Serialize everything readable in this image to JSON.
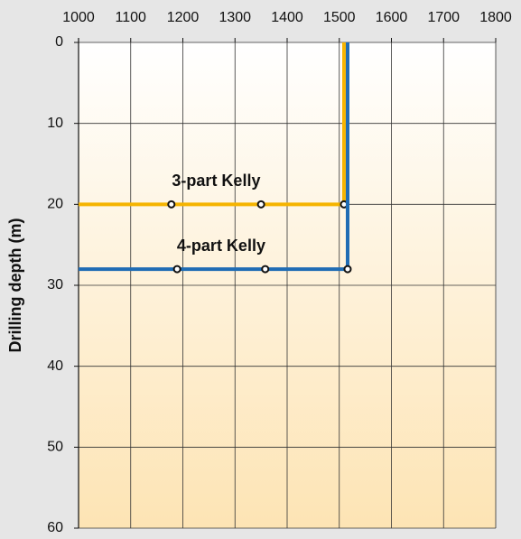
{
  "chart_data": {
    "type": "line",
    "ylabel": "Drilling depth (m)",
    "xlim": [
      1000,
      1800
    ],
    "xticks": [
      1000,
      1100,
      1200,
      1300,
      1400,
      1500,
      1600,
      1700,
      1800
    ],
    "ylim": [
      0,
      60
    ],
    "yticks": [
      0,
      10,
      20,
      30,
      40,
      50,
      60
    ],
    "y_inverted": true,
    "x_axis_position": "top",
    "grid": true,
    "series": [
      {
        "name": "3-part Kelly",
        "color": "#f5b400",
        "x": [
          1000,
          1178,
          1350,
          1509,
          1509
        ],
        "values": [
          20,
          20,
          20,
          20,
          0
        ]
      },
      {
        "name": "4-part Kelly",
        "color": "#1f6cb4",
        "x": [
          1000,
          1189,
          1358,
          1516,
          1516
        ],
        "values": [
          28,
          28,
          28,
          28,
          0
        ]
      }
    ]
  }
}
